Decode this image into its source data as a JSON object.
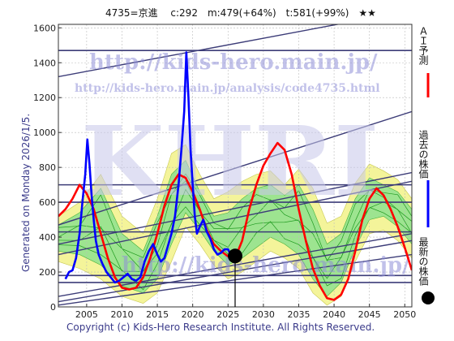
{
  "header": {
    "title": "4735=京進　 c:292　m:479(+64%)　t:581(+99%)　★★"
  },
  "generated_label": "Generated on Monday 2026/1/5.",
  "footer": "Copyright (c) Kids-Hero Research Institute. All Rights Reserved.",
  "watermark": {
    "url_main": "http://kids-hero.main.jp/",
    "url_analysis": "http://kids-hero.main.jp/analysis/code4735.html",
    "logo": "KHRI",
    "url_bottom": "http://kids-hero.main.jp/"
  },
  "legend": [
    {
      "label": "ＡＩ予測",
      "color": "#ff0000",
      "marker": "line"
    },
    {
      "label": "過去の株価",
      "color": "#0000ff",
      "marker": "line"
    },
    {
      "label": "最新の株価",
      "color": "#000000",
      "marker": "dot"
    }
  ],
  "chart_data": {
    "type": "line",
    "xlim": [
      2001,
      2051
    ],
    "ylim": [
      0,
      1620
    ],
    "xticks": [
      2005,
      2010,
      2015,
      2020,
      2025,
      2030,
      2035,
      2040,
      2045,
      2050
    ],
    "yticks": [
      0,
      200,
      400,
      600,
      800,
      1000,
      1200,
      1400,
      1600
    ],
    "horizontal_lines": [
      1470,
      700,
      600,
      430,
      180,
      140
    ],
    "trend_lines": [
      {
        "from": [
          2001,
          1320
        ],
        "to": [
          2051,
          1700
        ]
      },
      {
        "from": [
          2001,
          470
        ],
        "to": [
          2051,
          1120
        ]
      },
      {
        "from": [
          2001,
          360
        ],
        "to": [
          2051,
          770
        ]
      },
      {
        "from": [
          2001,
          300
        ],
        "to": [
          2051,
          720
        ]
      },
      {
        "from": [
          2001,
          60
        ],
        "to": [
          2051,
          420
        ]
      },
      {
        "from": [
          2001,
          30
        ],
        "to": [
          2051,
          380
        ]
      },
      {
        "from": [
          2001,
          10
        ],
        "to": [
          2051,
          300
        ]
      }
    ],
    "band_outer": {
      "x": [
        2001,
        2004,
        2007,
        2010,
        2013,
        2015,
        2017,
        2019,
        2021,
        2023,
        2025,
        2027,
        2029,
        2031,
        2033,
        2035,
        2037,
        2039,
        2041,
        2043,
        2045,
        2047,
        2049,
        2051
      ],
      "upper": [
        520,
        600,
        760,
        520,
        420,
        620,
        880,
        930,
        760,
        620,
        660,
        720,
        760,
        780,
        700,
        790,
        680,
        480,
        520,
        710,
        820,
        780,
        730,
        620
      ],
      "lower": [
        260,
        220,
        160,
        60,
        20,
        80,
        260,
        460,
        360,
        240,
        160,
        200,
        260,
        320,
        280,
        220,
        80,
        10,
        60,
        260,
        420,
        440,
        380,
        280
      ]
    },
    "band_inner": {
      "x": [
        2001,
        2004,
        2007,
        2010,
        2013,
        2015,
        2017,
        2019,
        2021,
        2023,
        2025,
        2027,
        2029,
        2031,
        2033,
        2035,
        2037,
        2039,
        2041,
        2043,
        2045,
        2047,
        2049,
        2051
      ],
      "upper": [
        470,
        540,
        680,
        420,
        320,
        520,
        760,
        840,
        660,
        520,
        540,
        620,
        680,
        700,
        640,
        700,
        560,
        360,
        420,
        620,
        740,
        700,
        660,
        560
      ],
      "lower": [
        320,
        300,
        240,
        120,
        80,
        160,
        360,
        540,
        440,
        320,
        240,
        280,
        340,
        400,
        360,
        300,
        160,
        60,
        140,
        340,
        500,
        520,
        460,
        360
      ]
    },
    "ai_forecast": {
      "x": [
        2001,
        2002,
        2003,
        2004,
        2005,
        2006,
        2007,
        2008,
        2009,
        2010,
        2011,
        2012,
        2013,
        2014,
        2015,
        2016,
        2017,
        2018,
        2019,
        2020,
        2021,
        2022,
        2023,
        2024,
        2025,
        2026,
        2027,
        2028,
        2029,
        2030,
        2031,
        2032,
        2033,
        2034,
        2035,
        2036,
        2037,
        2038,
        2039,
        2040,
        2041,
        2042,
        2043,
        2044,
        2045,
        2046,
        2047,
        2048,
        2049,
        2050,
        2051
      ],
      "y": [
        520,
        560,
        620,
        700,
        650,
        560,
        420,
        280,
        170,
        110,
        100,
        110,
        170,
        280,
        420,
        580,
        700,
        760,
        740,
        660,
        560,
        440,
        360,
        320,
        290,
        280,
        380,
        560,
        700,
        810,
        880,
        940,
        900,
        760,
        560,
        380,
        220,
        120,
        50,
        40,
        70,
        160,
        320,
        500,
        620,
        680,
        640,
        560,
        460,
        340,
        210
      ]
    },
    "past_price": {
      "x": [
        2002.0,
        2002.5,
        2003.0,
        2003.5,
        2004.0,
        2004.4,
        2004.8,
        2005.1,
        2005.4,
        2005.7,
        2006.0,
        2006.3,
        2006.7,
        2007.2,
        2007.8,
        2008.4,
        2009.0,
        2009.6,
        2010.2,
        2010.8,
        2011.4,
        2012.0,
        2012.6,
        2013.2,
        2013.8,
        2014.4,
        2015.0,
        2015.5,
        2016.0,
        2016.5,
        2017.0,
        2017.5,
        2018.0,
        2018.4,
        2018.8,
        2019.1,
        2019.4,
        2019.7,
        2020.0,
        2020.3,
        2020.6,
        2021.0,
        2021.5,
        2022.0,
        2022.5,
        2023.0,
        2023.5,
        2024.0,
        2024.5,
        2025.0,
        2025.5
      ],
      "y": [
        160,
        200,
        210,
        280,
        420,
        600,
        760,
        960,
        820,
        640,
        500,
        380,
        300,
        250,
        200,
        170,
        140,
        150,
        170,
        190,
        160,
        150,
        170,
        260,
        320,
        360,
        300,
        260,
        280,
        350,
        420,
        520,
        700,
        900,
        1120,
        1460,
        1200,
        900,
        700,
        520,
        420,
        460,
        500,
        430,
        390,
        330,
        300,
        310,
        330,
        330,
        290
      ]
    },
    "latest": {
      "x": 2026.0,
      "y": 292
    }
  }
}
